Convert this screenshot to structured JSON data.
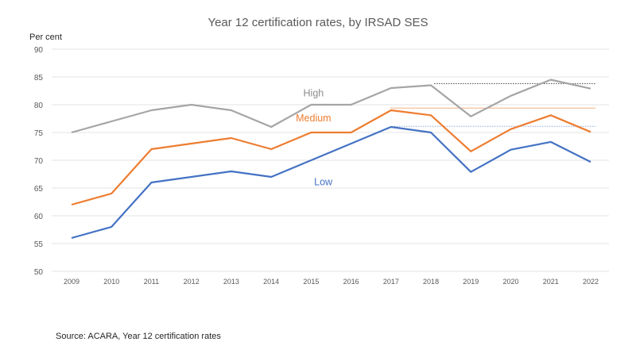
{
  "chart_data": {
    "type": "line",
    "title": "Year 12 certification rates, by IRSAD SES",
    "xlabel": "",
    "ylabel": "Per cent",
    "ylim": [
      50,
      90
    ],
    "yticks": [
      50,
      55,
      60,
      65,
      70,
      75,
      80,
      85,
      90
    ],
    "grid": true,
    "x": [
      "2009",
      "2010",
      "2011",
      "2012",
      "2013",
      "2014",
      "2015",
      "2016",
      "2017",
      "2018",
      "2019",
      "2020",
      "2021",
      "2022"
    ],
    "series": [
      {
        "name": "High",
        "color": "#a5a5a5",
        "values": [
          75,
          77,
          79,
          80,
          79,
          76,
          80,
          80,
          83,
          83.5,
          77.9,
          81.6,
          84.5,
          82.9
        ]
      },
      {
        "name": "Medium",
        "color": "#ed7d31",
        "values": [
          62,
          64,
          72,
          73,
          74,
          72,
          75,
          75,
          79,
          78.1,
          71.6,
          75.6,
          78.1,
          75.1
        ]
      },
      {
        "name": "Low",
        "color": "#4472c4",
        "values": [
          56,
          58,
          66,
          67,
          68,
          67,
          70,
          73,
          76,
          75,
          67.9,
          71.9,
          73.3,
          69.7
        ]
      }
    ],
    "reference_lines": [
      {
        "series": "High",
        "value": 83.8,
        "from": "2018",
        "style": "dotted",
        "color": "#404040"
      },
      {
        "series": "Medium",
        "value": 79.4,
        "from": "2017",
        "style": "solid",
        "color": "#f4b183"
      },
      {
        "series": "Low",
        "value": 76.1,
        "from": "2017",
        "style": "dotted",
        "color": "#8faadc"
      }
    ],
    "annotations": [
      {
        "text": "High",
        "near_x": "2015",
        "near_y": 81.5
      },
      {
        "text": "Medium",
        "near_x": "2015",
        "near_y": 77
      },
      {
        "text": "Low",
        "near_x": "2016",
        "near_y": 65.5
      }
    ],
    "source": "Source: ACARA, Year 12 certification rates"
  }
}
